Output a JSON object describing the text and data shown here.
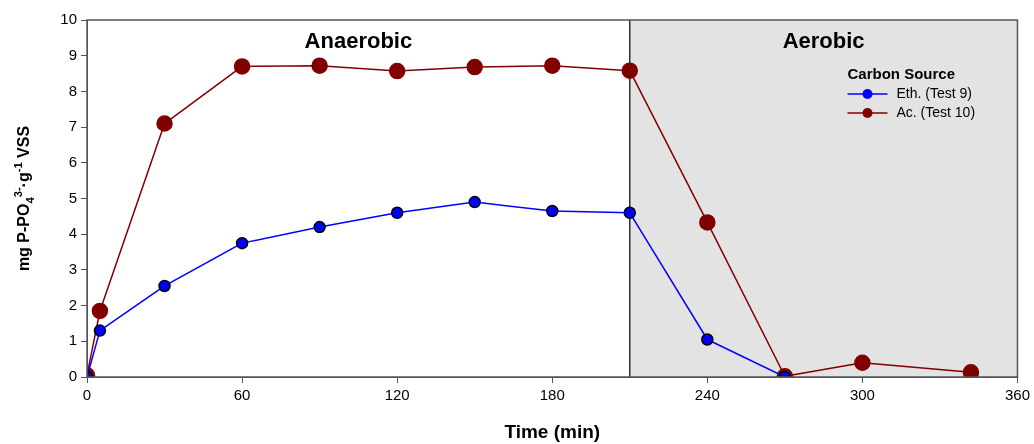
{
  "chart_data": {
    "type": "line",
    "xlabel": "Time (min)",
    "ylabel": "mg P-PO$_{4}$$^{3-}$·g$^{-1}$ VSS",
    "legend_title": "Carbon Source",
    "series": [
      {
        "name": "Eth. (Test 9)",
        "color": "#0000ff",
        "x": [
          0,
          5,
          30,
          60,
          90,
          120,
          150,
          180,
          210,
          240,
          270
        ],
        "values": [
          0,
          1.3,
          2.55,
          3.75,
          4.2,
          4.6,
          4.9,
          4.65,
          4.6,
          1.05,
          0
        ]
      },
      {
        "name": "Ac. (Test 10)",
        "color": "#800000",
        "x": [
          0,
          5,
          30,
          60,
          90,
          120,
          150,
          180,
          210,
          240,
          270,
          300,
          342
        ],
        "values": [
          0.05,
          1.85,
          7.1,
          8.7,
          8.72,
          8.57,
          8.68,
          8.72,
          8.58,
          4.33,
          0.02,
          0.4,
          0.13
        ]
      }
    ],
    "xlim": [
      0,
      360
    ],
    "xticks": [
      0,
      60,
      120,
      180,
      240,
      300,
      360
    ],
    "ylim": [
      0,
      10
    ],
    "yticks": [
      0,
      1,
      2,
      3,
      4,
      5,
      6,
      7,
      8,
      9,
      10
    ],
    "annotations": [
      "Anaerobic"
    ],
    "bands": [
      {
        "axis": "x",
        "from": 210,
        "to": 360,
        "label": "Aerobic",
        "color": "#e3e3e3"
      }
    ],
    "ref_lines": [
      {
        "axis": "x",
        "value": 210,
        "color": "#000000"
      }
    ],
    "grid": false,
    "legend": "top right",
    "marker": "circle",
    "line_style": "solid"
  }
}
